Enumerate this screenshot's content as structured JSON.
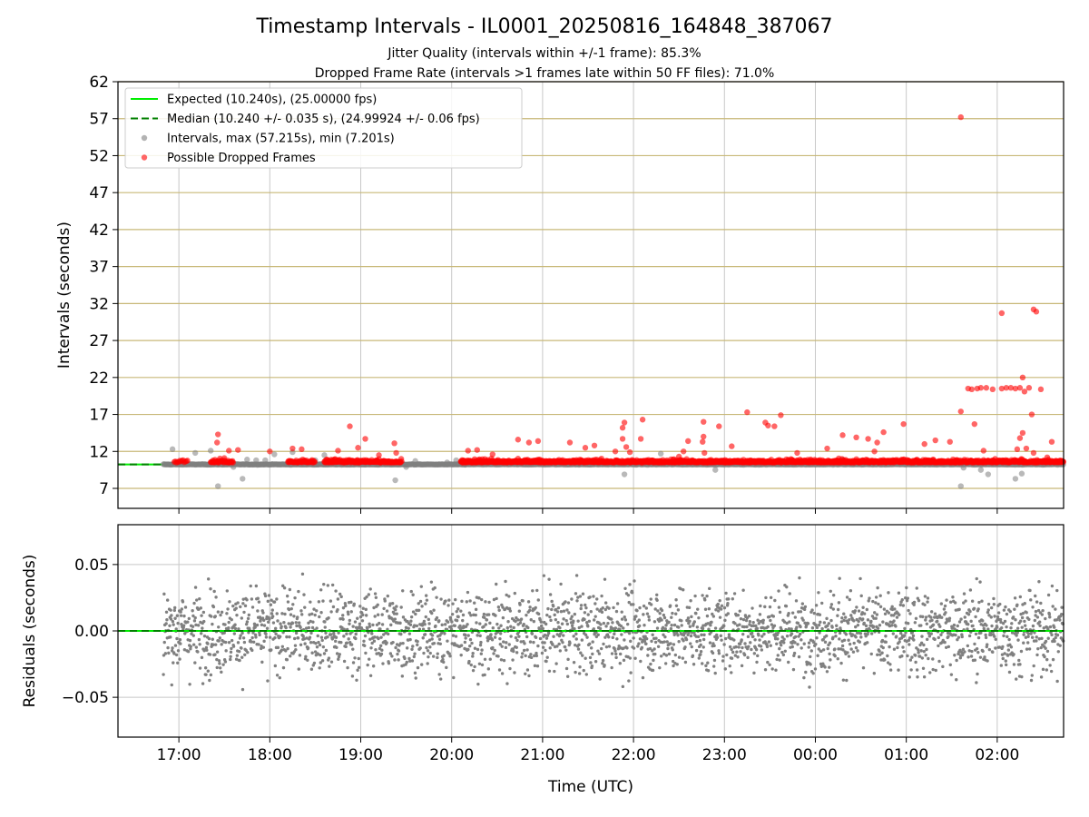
{
  "figure": {
    "title": "Timestamp Intervals - IL0001_20250816_164848_387067",
    "subtitle_1": "Jitter Quality (intervals within +/-1 frame): 85.3%",
    "subtitle_2": "Dropped Frame Rate (intervals >1 frames late within 50 FF files): 71.0%"
  },
  "colors": {
    "expected_line": "#00ee00",
    "median_line": "#008000",
    "intervals_points": "#808080",
    "dropped_points": "#ff0000",
    "horizontal_grid": "#c8b878",
    "vertical_grid": "#c8c8c8"
  },
  "chart_data": [
    {
      "type": "scatter",
      "panel": "intervals",
      "ylabel": "Intervals (seconds)",
      "ylim": [
        4.3,
        62
      ],
      "yticks": [
        7,
        12,
        17,
        22,
        27,
        32,
        37,
        42,
        47,
        52,
        57,
        62
      ],
      "ytick_labels": [
        "7",
        "12",
        "17",
        "22",
        "27",
        "32",
        "37",
        "42",
        "47",
        "52",
        "57",
        "62"
      ],
      "xlim_hours": [
        16.33,
        26.73
      ],
      "grid": true,
      "legend_placement": "upper-left",
      "legend": [
        {
          "label": "Expected (10.240s), (25.00000 fps)",
          "style": "solid-line",
          "color_key": "expected_line"
        },
        {
          "label": "Median (10.240 +/- 0.035 s), (24.99924 +/- 0.06 fps)",
          "style": "dashed-line",
          "color_key": "median_line"
        },
        {
          "label": "Intervals, max (57.215s), min (7.201s)",
          "style": "marker",
          "color_key": "intervals_points"
        },
        {
          "label": "Possible Dropped Frames",
          "style": "marker",
          "color_key": "dropped_points"
        }
      ],
      "expected_interval": 10.24,
      "median_interval": 10.24,
      "series": [
        {
          "name": "Intervals, max (57.215s), min (7.201s)",
          "baseline": 10.24,
          "points": [
            [
              16.93,
              12.3
            ],
            [
              16.97,
              10.4
            ],
            [
              17.18,
              11.8
            ],
            [
              17.35,
              12.1
            ],
            [
              17.43,
              7.3
            ],
            [
              17.6,
              9.9
            ],
            [
              17.7,
              8.3
            ],
            [
              17.75,
              10.9
            ],
            [
              17.85,
              10.8
            ],
            [
              17.95,
              10.8
            ],
            [
              18.05,
              11.6
            ],
            [
              18.25,
              11.9
            ],
            [
              18.5,
              10.8
            ],
            [
              18.6,
              11.5
            ],
            [
              19.15,
              10.6
            ],
            [
              19.38,
              8.1
            ],
            [
              19.5,
              9.9
            ],
            [
              19.6,
              10.7
            ],
            [
              19.95,
              10.5
            ],
            [
              20.05,
              10.8
            ],
            [
              21.4,
              10.2
            ],
            [
              21.9,
              8.9
            ],
            [
              22.3,
              11.7
            ],
            [
              22.9,
              9.5
            ],
            [
              23.9,
              10.6
            ],
            [
              24.3,
              10.9
            ],
            [
              25.3,
              10.3
            ],
            [
              25.6,
              7.3
            ],
            [
              25.63,
              9.8
            ],
            [
              25.82,
              9.5
            ],
            [
              25.9,
              8.9
            ],
            [
              26.2,
              8.3
            ],
            [
              26.27,
              9.0
            ]
          ]
        },
        {
          "name": "Possible Dropped Frames",
          "points": [
            [
              17.43,
              14.3
            ],
            [
              17.42,
              13.2
            ],
            [
              17.55,
              12.1
            ],
            [
              17.65,
              12.2
            ],
            [
              17.5,
              11.1
            ],
            [
              18.0,
              12.0
            ],
            [
              18.25,
              12.4
            ],
            [
              18.35,
              12.3
            ],
            [
              18.75,
              12.1
            ],
            [
              18.88,
              15.4
            ],
            [
              18.97,
              12.5
            ],
            [
              19.05,
              13.7
            ],
            [
              19.2,
              11.5
            ],
            [
              19.37,
              13.1
            ],
            [
              19.39,
              11.8
            ],
            [
              20.18,
              12.1
            ],
            [
              20.28,
              12.2
            ],
            [
              20.45,
              11.6
            ],
            [
              20.73,
              13.6
            ],
            [
              20.85,
              13.2
            ],
            [
              20.95,
              13.4
            ],
            [
              21.3,
              13.2
            ],
            [
              21.47,
              12.5
            ],
            [
              21.57,
              12.8
            ],
            [
              21.8,
              12.0
            ],
            [
              21.88,
              15.2
            ],
            [
              21.9,
              15.9
            ],
            [
              21.88,
              13.7
            ],
            [
              21.92,
              12.6
            ],
            [
              21.96,
              11.9
            ],
            [
              22.1,
              16.3
            ],
            [
              22.08,
              13.7
            ],
            [
              22.5,
              11.3
            ],
            [
              22.55,
              12.0
            ],
            [
              22.6,
              13.4
            ],
            [
              22.77,
              16.0
            ],
            [
              22.77,
              14.0
            ],
            [
              22.76,
              13.3
            ],
            [
              22.78,
              11.8
            ],
            [
              22.94,
              15.4
            ],
            [
              23.08,
              12.7
            ],
            [
              23.25,
              17.3
            ],
            [
              23.45,
              15.9
            ],
            [
              23.48,
              15.5
            ],
            [
              23.55,
              15.4
            ],
            [
              23.62,
              16.9
            ],
            [
              23.8,
              11.8
            ],
            [
              24.13,
              12.4
            ],
            [
              24.3,
              14.2
            ],
            [
              24.45,
              13.9
            ],
            [
              24.58,
              13.7
            ],
            [
              24.65,
              12.0
            ],
            [
              24.68,
              13.2
            ],
            [
              24.75,
              14.6
            ],
            [
              24.97,
              15.7
            ],
            [
              25.2,
              13.0
            ],
            [
              25.32,
              13.5
            ],
            [
              25.48,
              13.3
            ],
            [
              25.6,
              57.2
            ],
            [
              25.6,
              17.4
            ],
            [
              25.68,
              20.5
            ],
            [
              25.72,
              20.4
            ],
            [
              25.75,
              15.7
            ],
            [
              25.78,
              20.5
            ],
            [
              25.82,
              20.6
            ],
            [
              25.88,
              20.6
            ],
            [
              25.95,
              20.4
            ],
            [
              26.05,
              30.7
            ],
            [
              26.05,
              20.5
            ],
            [
              26.1,
              20.6
            ],
            [
              26.15,
              20.6
            ],
            [
              26.2,
              20.5
            ],
            [
              26.25,
              20.6
            ],
            [
              26.28,
              22.0
            ],
            [
              26.3,
              20.1
            ],
            [
              26.35,
              20.6
            ],
            [
              26.38,
              17.0
            ],
            [
              26.4,
              31.2
            ],
            [
              26.43,
              30.9
            ],
            [
              26.48,
              20.4
            ],
            [
              26.6,
              13.3
            ],
            [
              25.85,
              12.1
            ],
            [
              26.28,
              14.5
            ],
            [
              26.25,
              13.8
            ],
            [
              26.22,
              12.3
            ],
            [
              26.32,
              12.4
            ],
            [
              26.4,
              11.8
            ],
            [
              26.55,
              11.2
            ]
          ]
        }
      ]
    },
    {
      "type": "scatter",
      "panel": "residuals",
      "ylabel": "Residuals (seconds)",
      "xlabel": "Time (UTC)",
      "ylim": [
        -0.08,
        0.08
      ],
      "yticks": [
        -0.05,
        0.0,
        0.05
      ],
      "ytick_labels": [
        "−0.05",
        "0.00",
        "0.05"
      ],
      "xlim_hours": [
        16.33,
        26.73
      ],
      "xticks_hours": [
        17,
        18,
        19,
        20,
        21,
        22,
        23,
        24,
        25,
        26
      ],
      "xtick_labels": [
        "17:00",
        "18:00",
        "19:00",
        "20:00",
        "21:00",
        "22:00",
        "23:00",
        "00:00",
        "01:00",
        "02:00"
      ],
      "grid": true,
      "reference_line": 0.0,
      "series": [
        {
          "name": "Residuals",
          "x_range_hours": [
            16.83,
            26.73
          ],
          "point_count": 2600,
          "std": 0.022,
          "points": []
        }
      ]
    }
  ]
}
